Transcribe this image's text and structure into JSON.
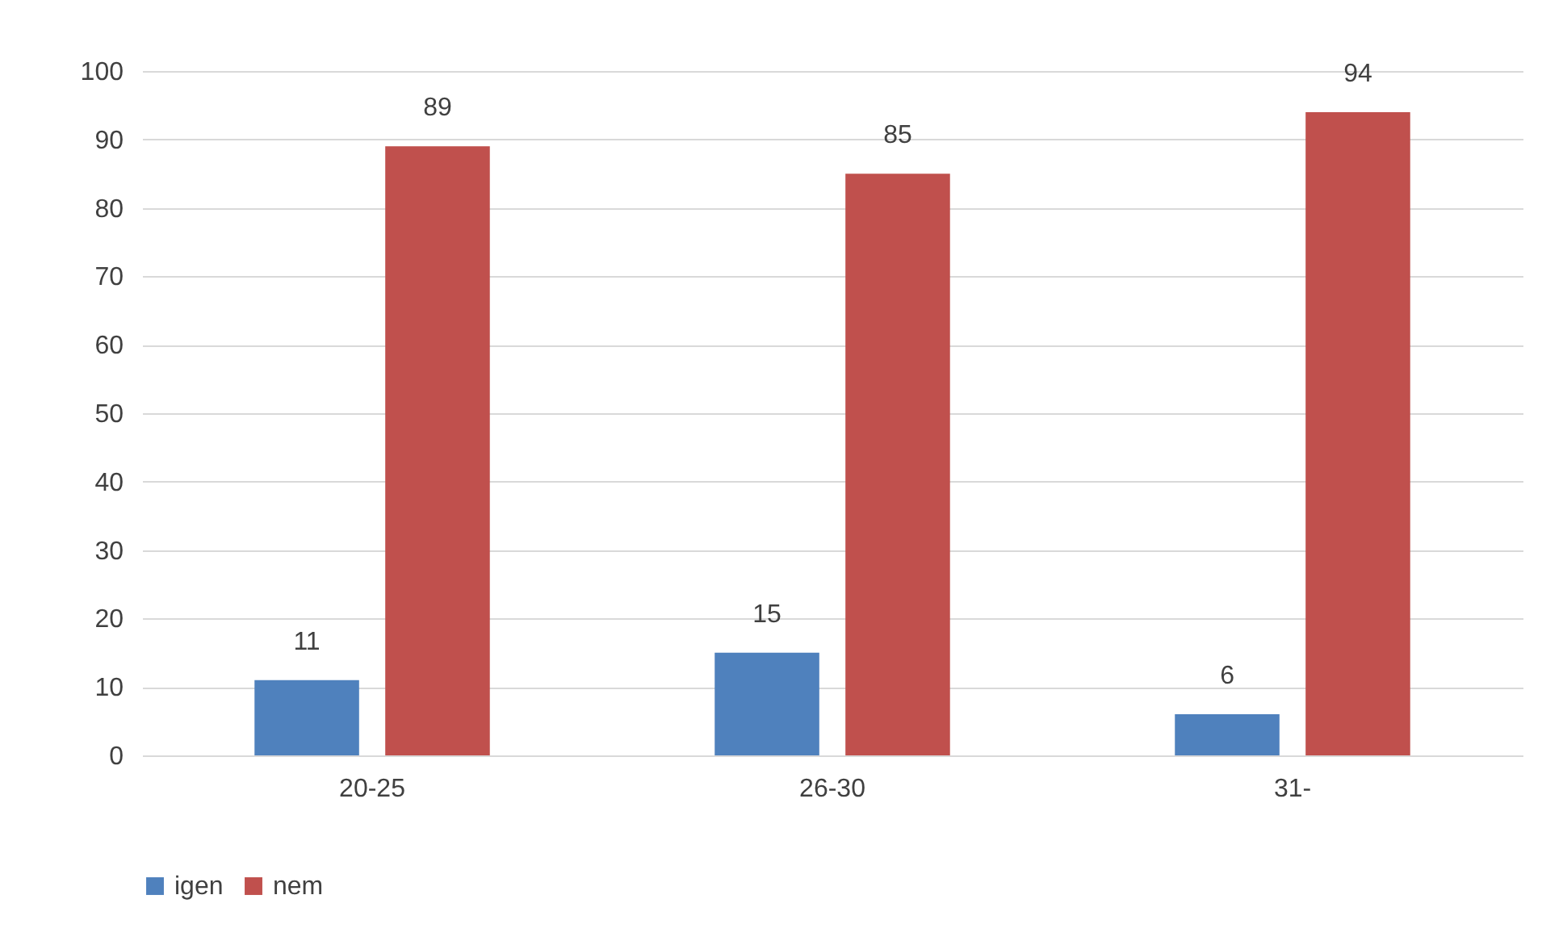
{
  "chart_data": {
    "type": "bar",
    "categories": [
      "20-25",
      "26-30",
      "31-"
    ],
    "series": [
      {
        "name": "igen",
        "color": "#4f81bd",
        "values": [
          11,
          15,
          6
        ]
      },
      {
        "name": "nem",
        "color": "#c0504d",
        "values": [
          89,
          85,
          94
        ]
      }
    ],
    "ylim": [
      0,
      100
    ],
    "yticks": [
      0,
      10,
      20,
      30,
      40,
      50,
      60,
      70,
      80,
      90,
      100
    ],
    "grid": "y",
    "legend": "bottom",
    "data_labels": true
  }
}
